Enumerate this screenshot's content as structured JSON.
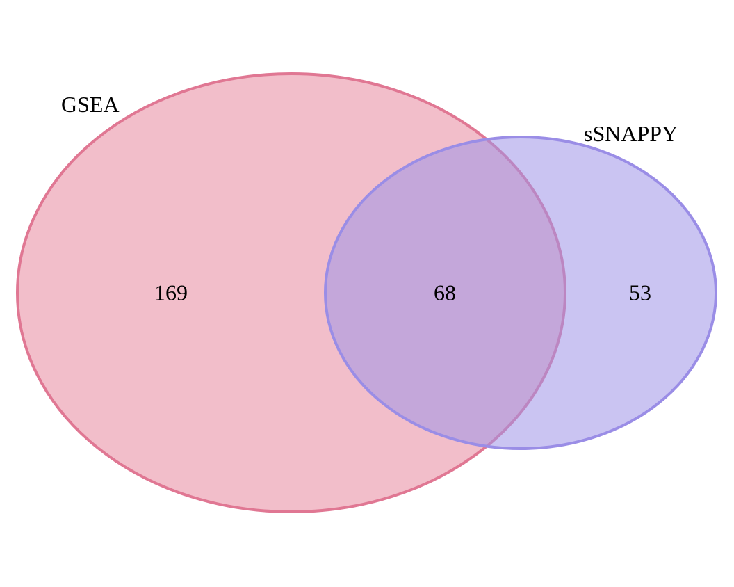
{
  "diagram": {
    "type": "venn",
    "sets": [
      {
        "label": "GSEA",
        "fill_color": "#e8889f",
        "stroke_color": "#e07793",
        "only_count": "169"
      },
      {
        "label": "sSNAPPY",
        "fill_color": "#9f93e8",
        "stroke_color": "#9a8de6",
        "only_count": "53"
      }
    ],
    "intersection_count": "68",
    "fill_opacity": 0.55
  }
}
